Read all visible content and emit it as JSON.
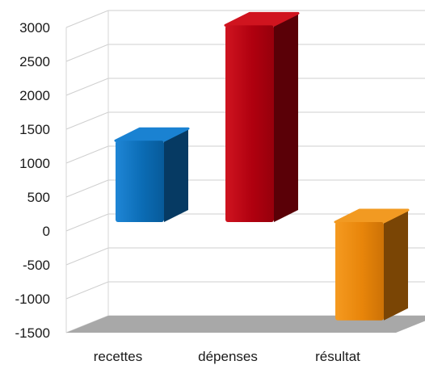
{
  "chart_data": {
    "type": "bar",
    "style": "3d-column",
    "categories": [
      "recettes",
      "dépenses",
      "résultat"
    ],
    "values": [
      1200,
      2900,
      -1450
    ],
    "colors": [
      "#0b6cb5",
      "#b0000f",
      "#e8850a"
    ],
    "ylim": [
      -1500,
      3000
    ],
    "yticks": [
      "-1500",
      "-1000",
      "-500",
      "0",
      "500",
      "1000",
      "1500",
      "2000",
      "2500",
      "3000"
    ],
    "grid": true,
    "legend": "none",
    "title": "",
    "xlabel": "",
    "ylabel": ""
  }
}
